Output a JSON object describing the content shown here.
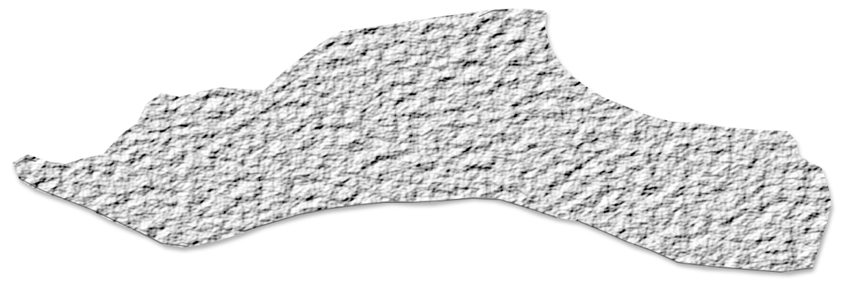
{
  "map": {
    "style": "shaded relief hillshade",
    "background_color": "#ffffff",
    "surface_color": "#f1f1f1",
    "shadow_color": "#3a3a3a",
    "labels": []
  }
}
